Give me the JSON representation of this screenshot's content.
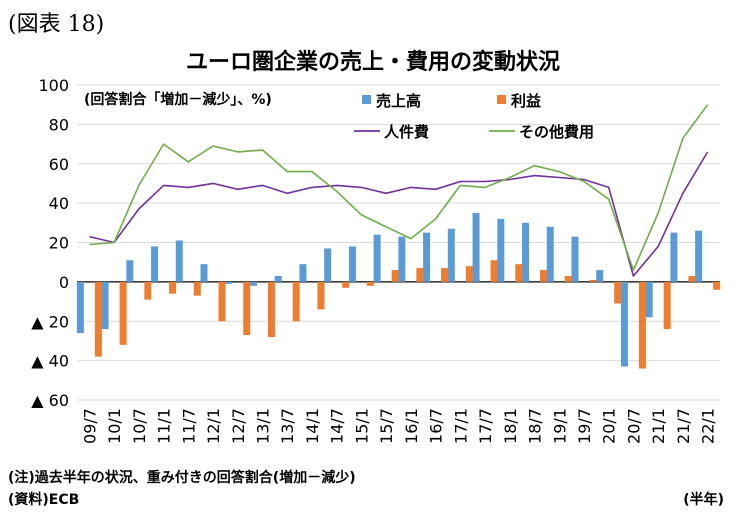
{
  "figure_label": "(図表 18)",
  "chart_data": {
    "type": "bar",
    "title": "ユーロ圏企業の売上・費用の変動状況",
    "annotation": "(回答割合「増加－減少」、%)",
    "categories": [
      "09/7",
      "10/1",
      "10/7",
      "11/1",
      "11/7",
      "12/1",
      "12/7",
      "13/1",
      "13/7",
      "14/1",
      "14/7",
      "15/1",
      "15/7",
      "16/1",
      "16/7",
      "17/1",
      "17/7",
      "18/1",
      "18/7",
      "19/1",
      "19/7",
      "20/1",
      "20/7",
      "21/1",
      "21/7",
      "22/1"
    ],
    "ylim": [
      -60,
      100
    ],
    "yticks": [
      100,
      80,
      60,
      40,
      20,
      0,
      -20,
      -40,
      -60
    ],
    "ytick_labels": [
      "100",
      "80",
      "60",
      "40",
      "20",
      "0",
      "▲ 20",
      "▲ 40",
      "▲ 60"
    ],
    "grid": true,
    "legend_position": "top",
    "series": [
      {
        "name": "売上高",
        "kind": "bar",
        "color": "#5b9bd5",
        "values": [
          -26,
          -24,
          11,
          18,
          21,
          9,
          -1,
          -2,
          3,
          9,
          17,
          18,
          24,
          23,
          25,
          27,
          35,
          32,
          30,
          28,
          23,
          6,
          -43,
          -18,
          25,
          26
        ]
      },
      {
        "name": "利益",
        "kind": "bar",
        "color": "#ed7d31",
        "values": [
          -38,
          -32,
          -9,
          -6,
          -7,
          -20,
          -27,
          -28,
          -20,
          -14,
          -3,
          -2,
          6,
          7,
          7,
          8,
          11,
          9,
          6,
          3,
          1,
          -11,
          -44,
          -24,
          3,
          -4
        ]
      },
      {
        "name": "人件費",
        "kind": "line",
        "color": "#7030a0",
        "values": [
          23,
          20,
          37,
          49,
          48,
          50,
          47,
          49,
          45,
          48,
          49,
          48,
          45,
          48,
          47,
          51,
          51,
          52,
          54,
          53,
          52,
          48,
          3,
          18,
          45,
          66
        ]
      },
      {
        "name": "その他費用",
        "kind": "line",
        "color": "#70ad47",
        "values": [
          19,
          20,
          49,
          70,
          61,
          69,
          66,
          67,
          56,
          56,
          46,
          34,
          28,
          22,
          32,
          49,
          48,
          53,
          59,
          56,
          51,
          42,
          6,
          35,
          73,
          90
        ]
      }
    ]
  },
  "footnotes": {
    "note": "(注)過去半年の状況、重み付きの回答割合(増加－減少)",
    "source": "(資料)ECB",
    "x_unit": "(半年)"
  }
}
